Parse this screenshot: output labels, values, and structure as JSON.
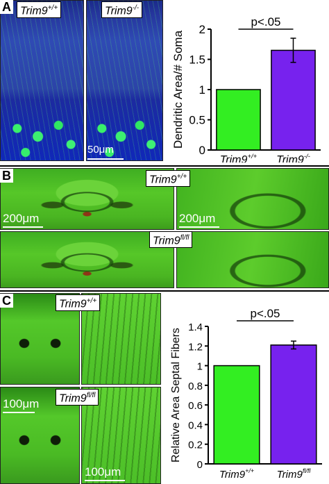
{
  "panel_letters": {
    "a": "A",
    "b": "B",
    "c": "C"
  },
  "panel_a": {
    "label_wt": "Trim9",
    "label_wt_sup": "+/+",
    "label_ko": "Trim9",
    "label_ko_sup": "-/-",
    "scale": "50μm"
  },
  "panel_b": {
    "label_wt": "Trim9",
    "label_wt_sup": "+/+",
    "label_cko": "Trim9",
    "label_cko_sup": "fl/fl",
    "scale_left": "200μm",
    "scale_right": "200μm"
  },
  "panel_c": {
    "label_wt": "Trim9",
    "label_wt_sup": "+/+",
    "label_cko": "Trim9",
    "label_cko_sup": "fl/fl",
    "scale_top": "100μm",
    "scale_bottom": "100μm"
  },
  "chart_data": [
    {
      "type": "bar",
      "ylabel": "Dendritic Area/# Soma",
      "significance": "p<.05",
      "categories": [
        "Trim9+/+",
        "Trim9-/-"
      ],
      "category_labels": [
        {
          "base": "Trim9",
          "sup": "+/+"
        },
        {
          "base": "Trim9",
          "sup": "-/-"
        }
      ],
      "values": [
        1.0,
        1.65
      ],
      "error": [
        0,
        0.2
      ],
      "colors": [
        "#33ee22",
        "#7722ee"
      ],
      "ylim": [
        0,
        2
      ],
      "yticks": [
        0,
        0.5,
        1,
        1.5,
        2
      ],
      "ytick_labels": [
        "0",
        "0.5",
        "1",
        "1.5",
        "2"
      ]
    },
    {
      "type": "bar",
      "ylabel": "Relative Area Septal Fibers",
      "significance": "p<.05",
      "categories": [
        "Trim9+/+",
        "Trim9fl/fl"
      ],
      "category_labels": [
        {
          "base": "Trim9",
          "sup": "+/+"
        },
        {
          "base": "Trim9",
          "sup": "fl/fl"
        }
      ],
      "values": [
        1.0,
        1.21
      ],
      "error": [
        0,
        0.04
      ],
      "colors": [
        "#33ee22",
        "#7722ee"
      ],
      "ylim": [
        0,
        1.4
      ],
      "yticks": [
        0,
        0.2,
        0.4,
        0.6,
        0.8,
        1,
        1.2,
        1.4
      ],
      "ytick_labels": [
        "0",
        "0.2",
        "0.4",
        "0.6",
        "0.8",
        "1",
        "1.2",
        "1.4"
      ]
    }
  ]
}
